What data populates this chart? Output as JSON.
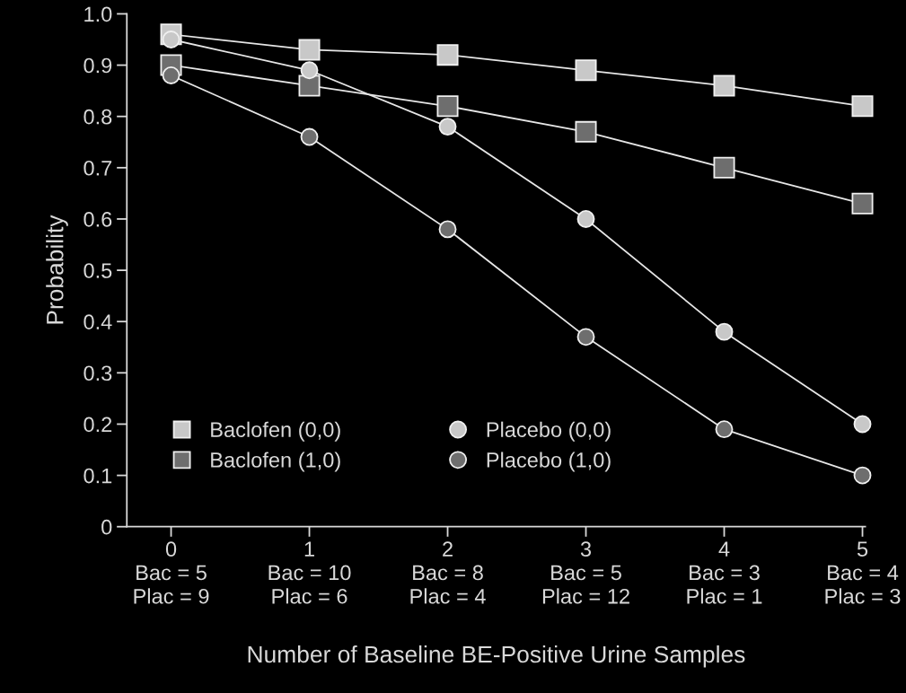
{
  "chart_data": {
    "type": "line",
    "xlabel": "Number of Baseline BE-Positive Urine Samples",
    "ylabel": "Probability",
    "categories": [
      "0\nBac = 5\nPlac = 9",
      "1\nBac = 10\nPlac = 6",
      "2\nBac = 8\nPlac = 4",
      "3\nBac = 5\nPlac = 12",
      "4\nBac = 3\nPlac = 1",
      "5\nBac = 4\nPlac = 3"
    ],
    "series": [
      {
        "name": "Baclofen (0,0)",
        "color": "#c8c8c8",
        "marker": "square",
        "values": [
          0.96,
          0.93,
          0.92,
          0.89,
          0.86,
          0.82
        ]
      },
      {
        "name": "Baclofen (1,0)",
        "color": "#6e6e6e",
        "marker": "square",
        "values": [
          0.9,
          0.86,
          0.82,
          0.77,
          0.7,
          0.63
        ]
      },
      {
        "name": "Placebo (0,0)",
        "color": "#c8c8c8",
        "marker": "circle",
        "values": [
          0.95,
          0.89,
          0.78,
          0.6,
          0.38,
          0.2
        ]
      },
      {
        "name": "Placebo (1,0)",
        "color": "#6e6e6e",
        "marker": "circle",
        "values": [
          0.88,
          0.76,
          0.58,
          0.37,
          0.19,
          0.1
        ]
      }
    ],
    "ylim": [
      0,
      1.0
    ],
    "yticks": [
      0,
      0.1,
      0.2,
      0.3,
      0.4,
      0.5,
      0.6,
      0.7,
      0.8,
      0.9,
      {
        "value": 1.0,
        "label": "1.0"
      }
    ],
    "grid": false,
    "legend": "bottom left",
    "line_style": "solid"
  }
}
